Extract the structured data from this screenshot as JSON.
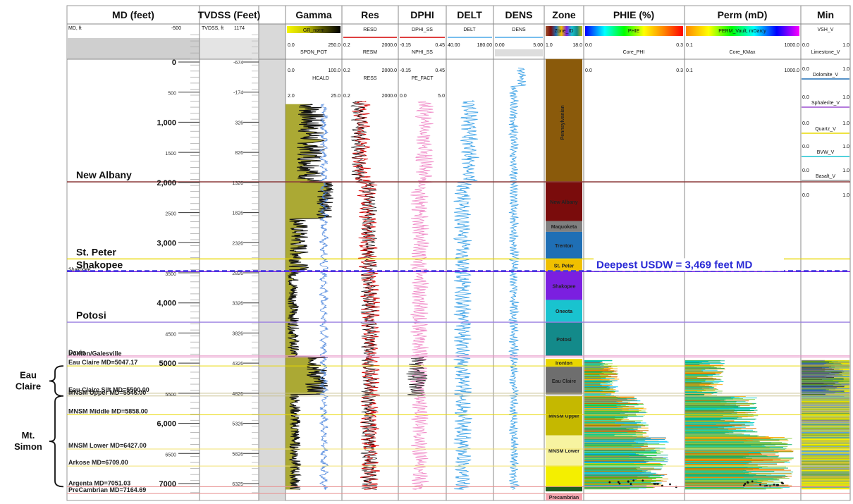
{
  "header_titles": {
    "md": "MD (feet)",
    "tvdss": "TVDSS (Feet)",
    "gamma": "Gamma",
    "res": "Res",
    "dphi": "DPHI",
    "delt": "DELT",
    "dens": "DENS",
    "zone": "Zone",
    "phie": "PHIE (%)",
    "perm": "Perm (mD)",
    "min": "Min"
  },
  "subheader": {
    "md_unit": "MD, ft",
    "md_top": "-500",
    "tvdss_unit": "TVDSS, ft",
    "tvdss_top": "1174",
    "gamma": {
      "gr": "GR_norm",
      "gr_min": "0.0",
      "gr_max": "250.0",
      "sp": "SPON_POT",
      "caliper": "HCALD",
      "cal_min": "0.0",
      "cal_max": "100.0",
      "sp_min": "2.0",
      "sp_max": "25.0"
    },
    "res": {
      "resd": "RESD",
      "resm": "RESM",
      "ress": "RESS",
      "min": "0.2",
      "max": "2000.0"
    },
    "dphi": {
      "dphi": "DPHI_SS",
      "nphi": "NPHI_SS",
      "pe": "PE_FACT",
      "min": "-0.15",
      "max": "0.45",
      "pe_min": "0.0",
      "pe_max": "5.0"
    },
    "delt": {
      "name": "DELT",
      "min": "40.00",
      "max": "180.00"
    },
    "dens": {
      "name": "DENS",
      "min": "0.00",
      "max": "5.00"
    },
    "zone": {
      "name": "Zone_ID",
      "min": "1.0",
      "max": "18.0"
    },
    "phie": {
      "name": "PHIE",
      "core": "Core_PHI",
      "min": "0.0",
      "max": "0.3"
    },
    "perm": {
      "name": "PERM_Vault, mDarcy",
      "core": "Core_KMax",
      "min": "0.1",
      "max": "1000.0"
    },
    "min": {
      "items": [
        "VSH_V",
        "Limestone_V",
        "Dolomite_V",
        "Sphalerite_V",
        "Quartz_V",
        "BVW_V",
        "Basalt_V"
      ],
      "min": "0.0",
      "max": "1.0"
    }
  },
  "chart_data": {
    "type": "well-log",
    "y_axis": {
      "label": "MD (feet)",
      "range": [
        -500,
        7300
      ],
      "ticks": [
        0,
        500,
        1000,
        1500,
        2000,
        2500,
        3000,
        3500,
        4000,
        4500,
        5000,
        5500,
        6000,
        6500,
        7000
      ],
      "tick_labels": [
        "0",
        "500",
        "1,000",
        "1500",
        "2,000",
        "2500",
        "3,000",
        "3500",
        "4,000",
        "4500",
        "5000",
        "5500",
        "6,000",
        "6500",
        "7000"
      ]
    },
    "tvdss_ticks": [
      {
        "md": 0,
        "label": "-674"
      },
      {
        "md": 500,
        "label": "-174"
      },
      {
        "md": 1000,
        "label": "326"
      },
      {
        "md": 1500,
        "label": "826"
      },
      {
        "md": 2000,
        "label": "1326"
      },
      {
        "md": 2500,
        "label": "1826"
      },
      {
        "md": 3000,
        "label": "2326"
      },
      {
        "md": 3500,
        "label": "2826"
      },
      {
        "md": 4000,
        "label": "3326"
      },
      {
        "md": 4500,
        "label": "3826"
      },
      {
        "md": 5000,
        "label": "4326"
      },
      {
        "md": 5500,
        "label": "4826"
      },
      {
        "md": 6000,
        "label": "5326"
      },
      {
        "md": 6500,
        "label": "5826"
      },
      {
        "md": 7000,
        "label": "6325"
      }
    ],
    "zones": [
      {
        "name": "Pennsylvanian",
        "top": -50,
        "base": 1990,
        "color": "#8a5a0b"
      },
      {
        "name": "New Albany",
        "top": 1990,
        "base": 2640,
        "color": "#7a0c0c"
      },
      {
        "name": "Maquoketa",
        "top": 2640,
        "base": 2820,
        "color": "#808080"
      },
      {
        "name": "Trenton",
        "top": 2820,
        "base": 3270,
        "color": "#1f6fb5"
      },
      {
        "name": "St. Peter",
        "top": 3270,
        "base": 3480,
        "color": "#f0c000"
      },
      {
        "name": "Shakopee",
        "top": 3480,
        "base": 3950,
        "color": "#7b1fe0"
      },
      {
        "name": "Oneota",
        "top": 3950,
        "base": 4320,
        "color": "#19c3cf"
      },
      {
        "name": "Potosi",
        "top": 4320,
        "base": 4880,
        "color": "#138a8a"
      },
      {
        "name": "Ironton",
        "top": 4930,
        "base": 5060,
        "color": "#e8d600"
      },
      {
        "name": "Eau Claire",
        "top": 5060,
        "base": 5520,
        "color": "#6e6e6e"
      },
      {
        "name": "MNSM Upper",
        "top": 5545,
        "base": 6200,
        "color": "#c5b800"
      },
      {
        "name": "MNSM Lower",
        "top": 6200,
        "base": 6700,
        "color": "#f7f3a0"
      },
      {
        "name": "",
        "top": 6700,
        "base": 7051,
        "color": "#f4ef00"
      },
      {
        "name": "",
        "top": 7051,
        "base": 7130,
        "color": "#1f5d1f"
      },
      {
        "name": "Precambrian",
        "top": 7165,
        "base": 7280,
        "color": "#f4a6b0"
      }
    ],
    "formation_tops": [
      {
        "name": "New Albany",
        "md": 1990,
        "color": "#8b3a3a",
        "large": true
      },
      {
        "name": "St. Peter",
        "md": 3270,
        "color": "#e8d800",
        "large": true
      },
      {
        "name": "Shakopee",
        "md": 3480,
        "color": "#7b1fe0",
        "large": true,
        "small_label": "Shakopee"
      },
      {
        "name": "Potosi",
        "md": 4320,
        "color": "#9a7fe0",
        "large": true
      },
      {
        "name": "Davis",
        "md": 4880,
        "color": "#e895c8",
        "large": false
      },
      {
        "name": "Ironton/Galesville",
        "md": 4900,
        "color": "#e895c8",
        "large": false
      },
      {
        "name": "Eau Claire MD=5047.17",
        "md": 5047.17,
        "color": "#e8d800",
        "large": false
      },
      {
        "name": "Eau Claire Silt MD=5500.00",
        "md": 5500.0,
        "color": "#c8c090",
        "large": false
      },
      {
        "name": "MNSM Upper MD=5546.00",
        "md": 5546.0,
        "color": "#c8c090",
        "large": false
      },
      {
        "name": "MNSM Middle MD=5858.00",
        "md": 5858.0,
        "color": "#e8d800",
        "large": false
      },
      {
        "name": "MNSM Lower MD=6427.00",
        "md": 6427.0,
        "color": "#f0e070",
        "large": false
      },
      {
        "name": "Arkose MD=6709.00",
        "md": 6709.0,
        "color": "#f0e070",
        "large": false
      },
      {
        "name": "Argenta MD=7051.03",
        "md": 7051.03,
        "color": "#e89090",
        "large": false
      },
      {
        "name": "PreCambrian MD=7164.69",
        "md": 7164.69,
        "color": "#e89090",
        "large": false
      }
    ],
    "usdw": {
      "label": "Deepest USDW = 3,469 feet MD",
      "md": 3469,
      "color": "#3a3ae0"
    },
    "brackets": [
      {
        "label": "Eau Claire",
        "top": 5047.17,
        "base": 5546.0
      },
      {
        "label": "Mt. Simon",
        "top": 5546.0,
        "base": 7051.03
      }
    ]
  }
}
